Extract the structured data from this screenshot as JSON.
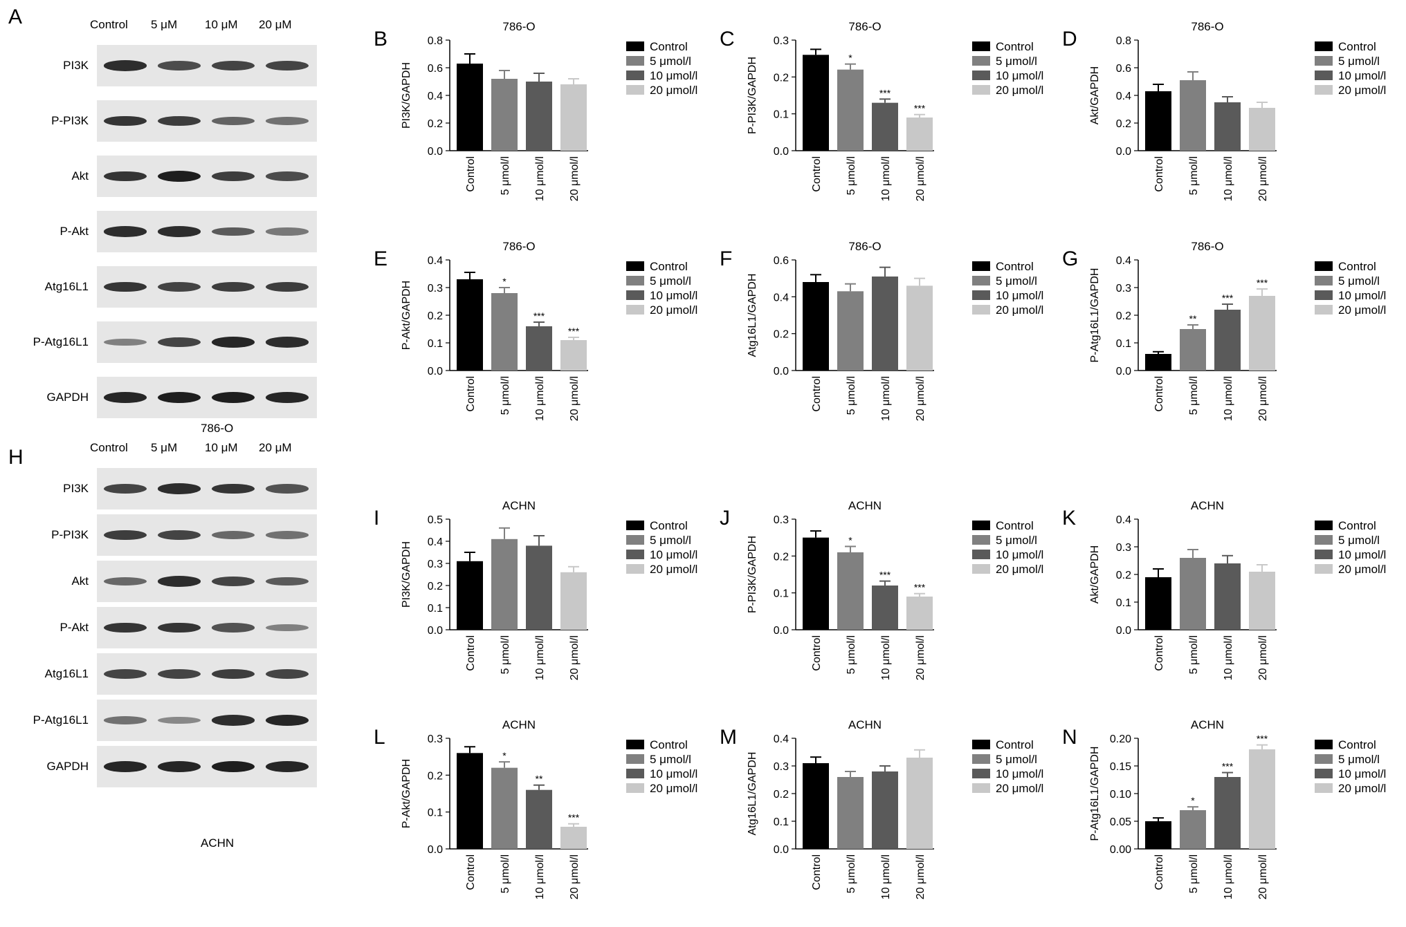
{
  "panels": {
    "A": "A",
    "H": "H"
  },
  "blots": [
    {
      "letter": "A",
      "lanes": [
        "Control",
        "5 μM",
        "10 μM",
        "20 μM"
      ],
      "rows": [
        {
          "label": "PI3K",
          "intensity": [
            0.9,
            0.7,
            0.75,
            0.75
          ]
        },
        {
          "label": "P-PI3K",
          "intensity": [
            0.85,
            0.8,
            0.55,
            0.45
          ]
        },
        {
          "label": "Akt",
          "intensity": [
            0.85,
            1.0,
            0.8,
            0.7
          ]
        },
        {
          "label": "P-Akt",
          "intensity": [
            0.9,
            0.9,
            0.6,
            0.4
          ]
        },
        {
          "label": "Atg16L1",
          "intensity": [
            0.85,
            0.75,
            0.8,
            0.8
          ]
        },
        {
          "label": "P-Atg16L1",
          "intensity": [
            0.35,
            0.75,
            0.95,
            0.9
          ]
        },
        {
          "label": "GAPDH",
          "intensity": [
            0.95,
            1.0,
            1.0,
            0.95
          ]
        }
      ],
      "caption": "786-O"
    },
    {
      "letter": "H",
      "lanes": [
        "Control",
        "5 μM",
        "10 μM",
        "20 μM"
      ],
      "rows": [
        {
          "label": "PI3K",
          "intensity": [
            0.75,
            0.9,
            0.85,
            0.65
          ]
        },
        {
          "label": "P-PI3K",
          "intensity": [
            0.8,
            0.75,
            0.5,
            0.45
          ]
        },
        {
          "label": "Akt",
          "intensity": [
            0.5,
            0.9,
            0.75,
            0.6
          ]
        },
        {
          "label": "P-Akt",
          "intensity": [
            0.85,
            0.85,
            0.65,
            0.35
          ]
        },
        {
          "label": "Atg16L1",
          "intensity": [
            0.75,
            0.75,
            0.8,
            0.75
          ]
        },
        {
          "label": "P-Atg16L1",
          "intensity": [
            0.45,
            0.3,
            0.9,
            0.95
          ]
        },
        {
          "label": "GAPDH",
          "intensity": [
            0.95,
            0.95,
            1.0,
            0.95
          ]
        }
      ],
      "caption": "ACHN"
    }
  ],
  "chart_data": [
    {
      "letter": "B",
      "type": "bar",
      "title": "786-O",
      "ylabel": "PI3K/GAPDH",
      "ylim": [
        0,
        0.8
      ],
      "yticks": [
        "0.0",
        "0.2",
        "0.4",
        "0.6",
        "0.8"
      ],
      "categories": [
        "Control",
        "5 μmol/l",
        "10 μmol/l",
        "20 μmol/l"
      ],
      "values": [
        0.63,
        0.52,
        0.5,
        0.48
      ],
      "errors": [
        0.07,
        0.06,
        0.06,
        0.04
      ],
      "significance": [
        "",
        "",
        "",
        ""
      ],
      "legend": [
        "Control",
        "5 μmol/l",
        "10 μmol/l",
        "20 μmol/l"
      ]
    },
    {
      "letter": "C",
      "type": "bar",
      "title": "786-O",
      "ylabel": "P-PI3K/GAPDH",
      "ylim": [
        0,
        0.3
      ],
      "yticks": [
        "0.0",
        "0.1",
        "0.2",
        "0.3"
      ],
      "categories": [
        "Control",
        "5 μmol/l",
        "10 μmol/l",
        "20 μmol/l"
      ],
      "values": [
        0.26,
        0.22,
        0.13,
        0.09
      ],
      "errors": [
        0.015,
        0.015,
        0.01,
        0.008
      ],
      "significance": [
        "",
        "*",
        "***",
        "***"
      ],
      "legend": [
        "Control",
        "5 μmol/l",
        "10 μmol/l",
        "20 μmol/l"
      ]
    },
    {
      "letter": "D",
      "type": "bar",
      "title": "786-O",
      "ylabel": "Akt/GAPDH",
      "ylim": [
        0,
        0.8
      ],
      "yticks": [
        "0.0",
        "0.2",
        "0.4",
        "0.6",
        "0.8"
      ],
      "categories": [
        "Control",
        "5 μmol/l",
        "10 μmol/l",
        "20 μmol/l"
      ],
      "values": [
        0.43,
        0.51,
        0.35,
        0.31
      ],
      "errors": [
        0.05,
        0.06,
        0.04,
        0.04
      ],
      "significance": [
        "",
        "",
        "",
        ""
      ],
      "legend": [
        "Control",
        "5 μmol/l",
        "10 μmol/l",
        "20 μmol/l"
      ]
    },
    {
      "letter": "E",
      "type": "bar",
      "title": "786-O",
      "ylabel": "P-Akt/GAPDH",
      "ylim": [
        0,
        0.4
      ],
      "yticks": [
        "0.0",
        "0.1",
        "0.2",
        "0.3",
        "0.4"
      ],
      "categories": [
        "Control",
        "5 μmol/l",
        "10 μmol/l",
        "20 μmol/l"
      ],
      "values": [
        0.33,
        0.28,
        0.16,
        0.11
      ],
      "errors": [
        0.025,
        0.02,
        0.015,
        0.01
      ],
      "significance": [
        "",
        "*",
        "***",
        "***"
      ],
      "legend": [
        "Control",
        "5 μmol/l",
        "10 μmol/l",
        "20 μmol/l"
      ]
    },
    {
      "letter": "F",
      "type": "bar",
      "title": "786-O",
      "ylabel": "Atg16L1/GAPDH",
      "ylim": [
        0,
        0.6
      ],
      "yticks": [
        "0.0",
        "0.2",
        "0.4",
        "0.6"
      ],
      "categories": [
        "Control",
        "5 μmol/l",
        "10 μmol/l",
        "20 μmol/l"
      ],
      "values": [
        0.48,
        0.43,
        0.51,
        0.46
      ],
      "errors": [
        0.04,
        0.04,
        0.05,
        0.04
      ],
      "significance": [
        "",
        "",
        "",
        ""
      ],
      "legend": [
        "Control",
        "5 μmol/l",
        "10 μmol/l",
        "20 μmol/l"
      ]
    },
    {
      "letter": "G",
      "type": "bar",
      "title": "786-O",
      "ylabel": "P-Atg16L1/GAPDH",
      "ylim": [
        0,
        0.4
      ],
      "yticks": [
        "0.0",
        "0.1",
        "0.2",
        "0.3",
        "0.4"
      ],
      "categories": [
        "Control",
        "5 μmol/l",
        "10 μmol/l",
        "20 μmol/l"
      ],
      "values": [
        0.06,
        0.15,
        0.22,
        0.27
      ],
      "errors": [
        0.008,
        0.015,
        0.02,
        0.025
      ],
      "significance": [
        "",
        "**",
        "***",
        "***"
      ],
      "legend": [
        "Control",
        "5 μmol/l",
        "10 μmol/l",
        "20 μmol/l"
      ]
    },
    {
      "letter": "I",
      "type": "bar",
      "title": "ACHN",
      "ylabel": "PI3K/GAPDH",
      "ylim": [
        0,
        0.5
      ],
      "yticks": [
        "0.0",
        "0.1",
        "0.2",
        "0.3",
        "0.4",
        "0.5"
      ],
      "categories": [
        "Control",
        "5 μmol/l",
        "10 μmol/l",
        "20 μmol/l"
      ],
      "values": [
        0.31,
        0.41,
        0.38,
        0.26
      ],
      "errors": [
        0.04,
        0.05,
        0.045,
        0.025
      ],
      "significance": [
        "",
        "",
        "",
        ""
      ],
      "legend": [
        "Control",
        "5 μmol/l",
        "10 μmol/l",
        "20 μmol/l"
      ]
    },
    {
      "letter": "J",
      "type": "bar",
      "title": "ACHN",
      "ylabel": "P-PI3K/GAPDH",
      "ylim": [
        0,
        0.3
      ],
      "yticks": [
        "0.0",
        "0.1",
        "0.2",
        "0.3"
      ],
      "categories": [
        "Control",
        "5 μmol/l",
        "10 μmol/l",
        "20 μmol/l"
      ],
      "values": [
        0.25,
        0.21,
        0.12,
        0.09
      ],
      "errors": [
        0.018,
        0.016,
        0.012,
        0.008
      ],
      "significance": [
        "",
        "*",
        "***",
        "***"
      ],
      "legend": [
        "Control",
        "5 μmol/l",
        "10 μmol/l",
        "20 μmol/l"
      ]
    },
    {
      "letter": "K",
      "type": "bar",
      "title": "ACHN",
      "ylabel": "Akt/GAPDH",
      "ylim": [
        0,
        0.4
      ],
      "yticks": [
        "0.0",
        "0.1",
        "0.2",
        "0.3",
        "0.4"
      ],
      "categories": [
        "Control",
        "5 μmol/l",
        "10 μmol/l",
        "20 μmol/l"
      ],
      "values": [
        0.19,
        0.26,
        0.24,
        0.21
      ],
      "errors": [
        0.03,
        0.03,
        0.028,
        0.025
      ],
      "significance": [
        "",
        "",
        "",
        ""
      ],
      "legend": [
        "Control",
        "5 μmol/l",
        "10 μmol/l",
        "20 μmol/l"
      ]
    },
    {
      "letter": "L",
      "type": "bar",
      "title": "ACHN",
      "ylabel": "P-Akt/GAPDH",
      "ylim": [
        0,
        0.3
      ],
      "yticks": [
        "0.0",
        "0.1",
        "0.2",
        "0.3"
      ],
      "categories": [
        "Control",
        "5 μmol/l",
        "10 μmol/l",
        "20 μmol/l"
      ],
      "values": [
        0.26,
        0.22,
        0.16,
        0.06
      ],
      "errors": [
        0.017,
        0.016,
        0.013,
        0.008
      ],
      "significance": [
        "",
        "*",
        "**",
        "***"
      ],
      "legend": [
        "Control",
        "5 μmol/l",
        "10 μmol/l",
        "20 μmol/l"
      ]
    },
    {
      "letter": "M",
      "type": "bar",
      "title": "ACHN",
      "ylabel": "Atg16L1/GAPDH",
      "ylim": [
        0,
        0.4
      ],
      "yticks": [
        "0.0",
        "0.1",
        "0.2",
        "0.3",
        "0.4"
      ],
      "categories": [
        "Control",
        "5 μmol/l",
        "10 μmol/l",
        "20 μmol/l"
      ],
      "values": [
        0.31,
        0.26,
        0.28,
        0.33
      ],
      "errors": [
        0.022,
        0.02,
        0.02,
        0.028
      ],
      "significance": [
        "",
        "",
        "",
        ""
      ],
      "legend": [
        "Control",
        "5 μmol/l",
        "10 μmol/l",
        "20 μmol/l"
      ]
    },
    {
      "letter": "N",
      "type": "bar",
      "title": "ACHN",
      "ylabel": "P-Atg16L1/GAPDH",
      "ylim": [
        0,
        0.2
      ],
      "yticks": [
        "0.00",
        "0.05",
        "0.10",
        "0.15",
        "0.20"
      ],
      "categories": [
        "Control",
        "5 μmol/l",
        "10 μmol/l",
        "20 μmol/l"
      ],
      "values": [
        0.05,
        0.07,
        0.13,
        0.18
      ],
      "errors": [
        0.006,
        0.006,
        0.008,
        0.008
      ],
      "significance": [
        "",
        "*",
        "***",
        "***"
      ],
      "legend": [
        "Control",
        "5 μmol/l",
        "10 μmol/l",
        "20 μmol/l"
      ]
    }
  ],
  "colors": {
    "control": "#000000",
    "low": "#808080",
    "mid": "#5a5a5a",
    "high": "#c8c8c8"
  }
}
